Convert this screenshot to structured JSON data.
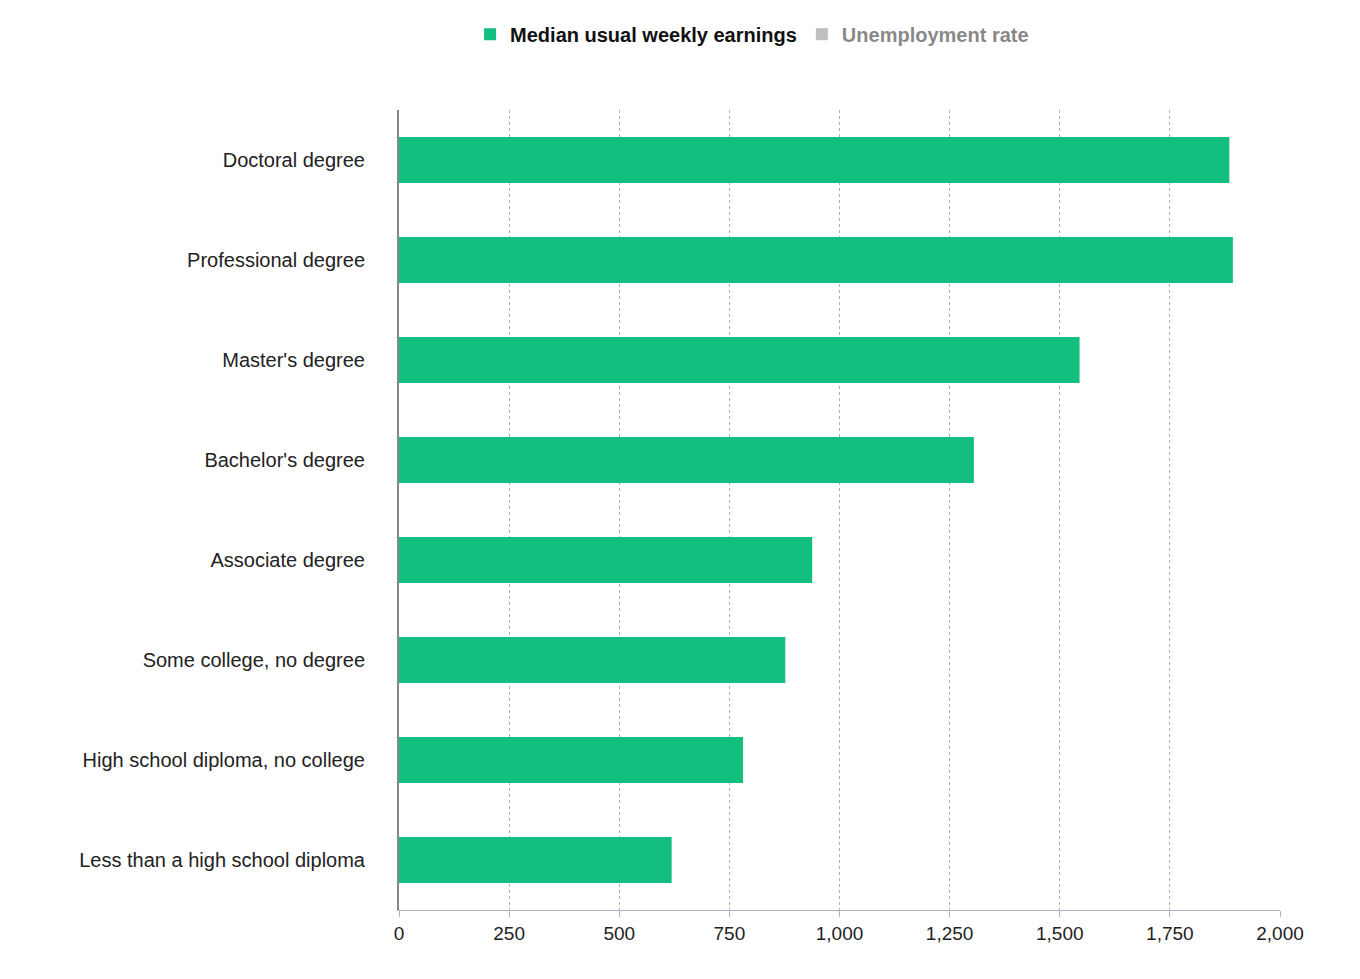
{
  "chart_data": {
    "type": "bar",
    "orientation": "horizontal",
    "categories": [
      "Doctoral degree",
      "Professional degree",
      "Master's degree",
      "Bachelor's degree",
      "Associate degree",
      "Some college, no degree",
      "High school diploma, no college",
      "Less than a high school diploma"
    ],
    "series": [
      {
        "name": "Median usual weekly earnings",
        "color": "#12bf7f",
        "values": [
          1885,
          1893,
          1545,
          1305,
          938,
          877,
          781,
          619
        ]
      },
      {
        "name": "Unemployment rate",
        "color": "#808080",
        "values": [
          null,
          null,
          null,
          null,
          null,
          null,
          null,
          null
        ]
      }
    ],
    "xlim": [
      0,
      2000
    ],
    "xticks": [
      0,
      250,
      500,
      750,
      {
        "value": 1000,
        "label": "1,000"
      },
      {
        "value": 1250,
        "label": "1,250"
      },
      {
        "value": 1500,
        "label": "1,500"
      },
      {
        "value": 1750,
        "label": "1,750"
      },
      {
        "value": 2000,
        "label": "2,000"
      }
    ],
    "grid": true,
    "legend": "top"
  }
}
